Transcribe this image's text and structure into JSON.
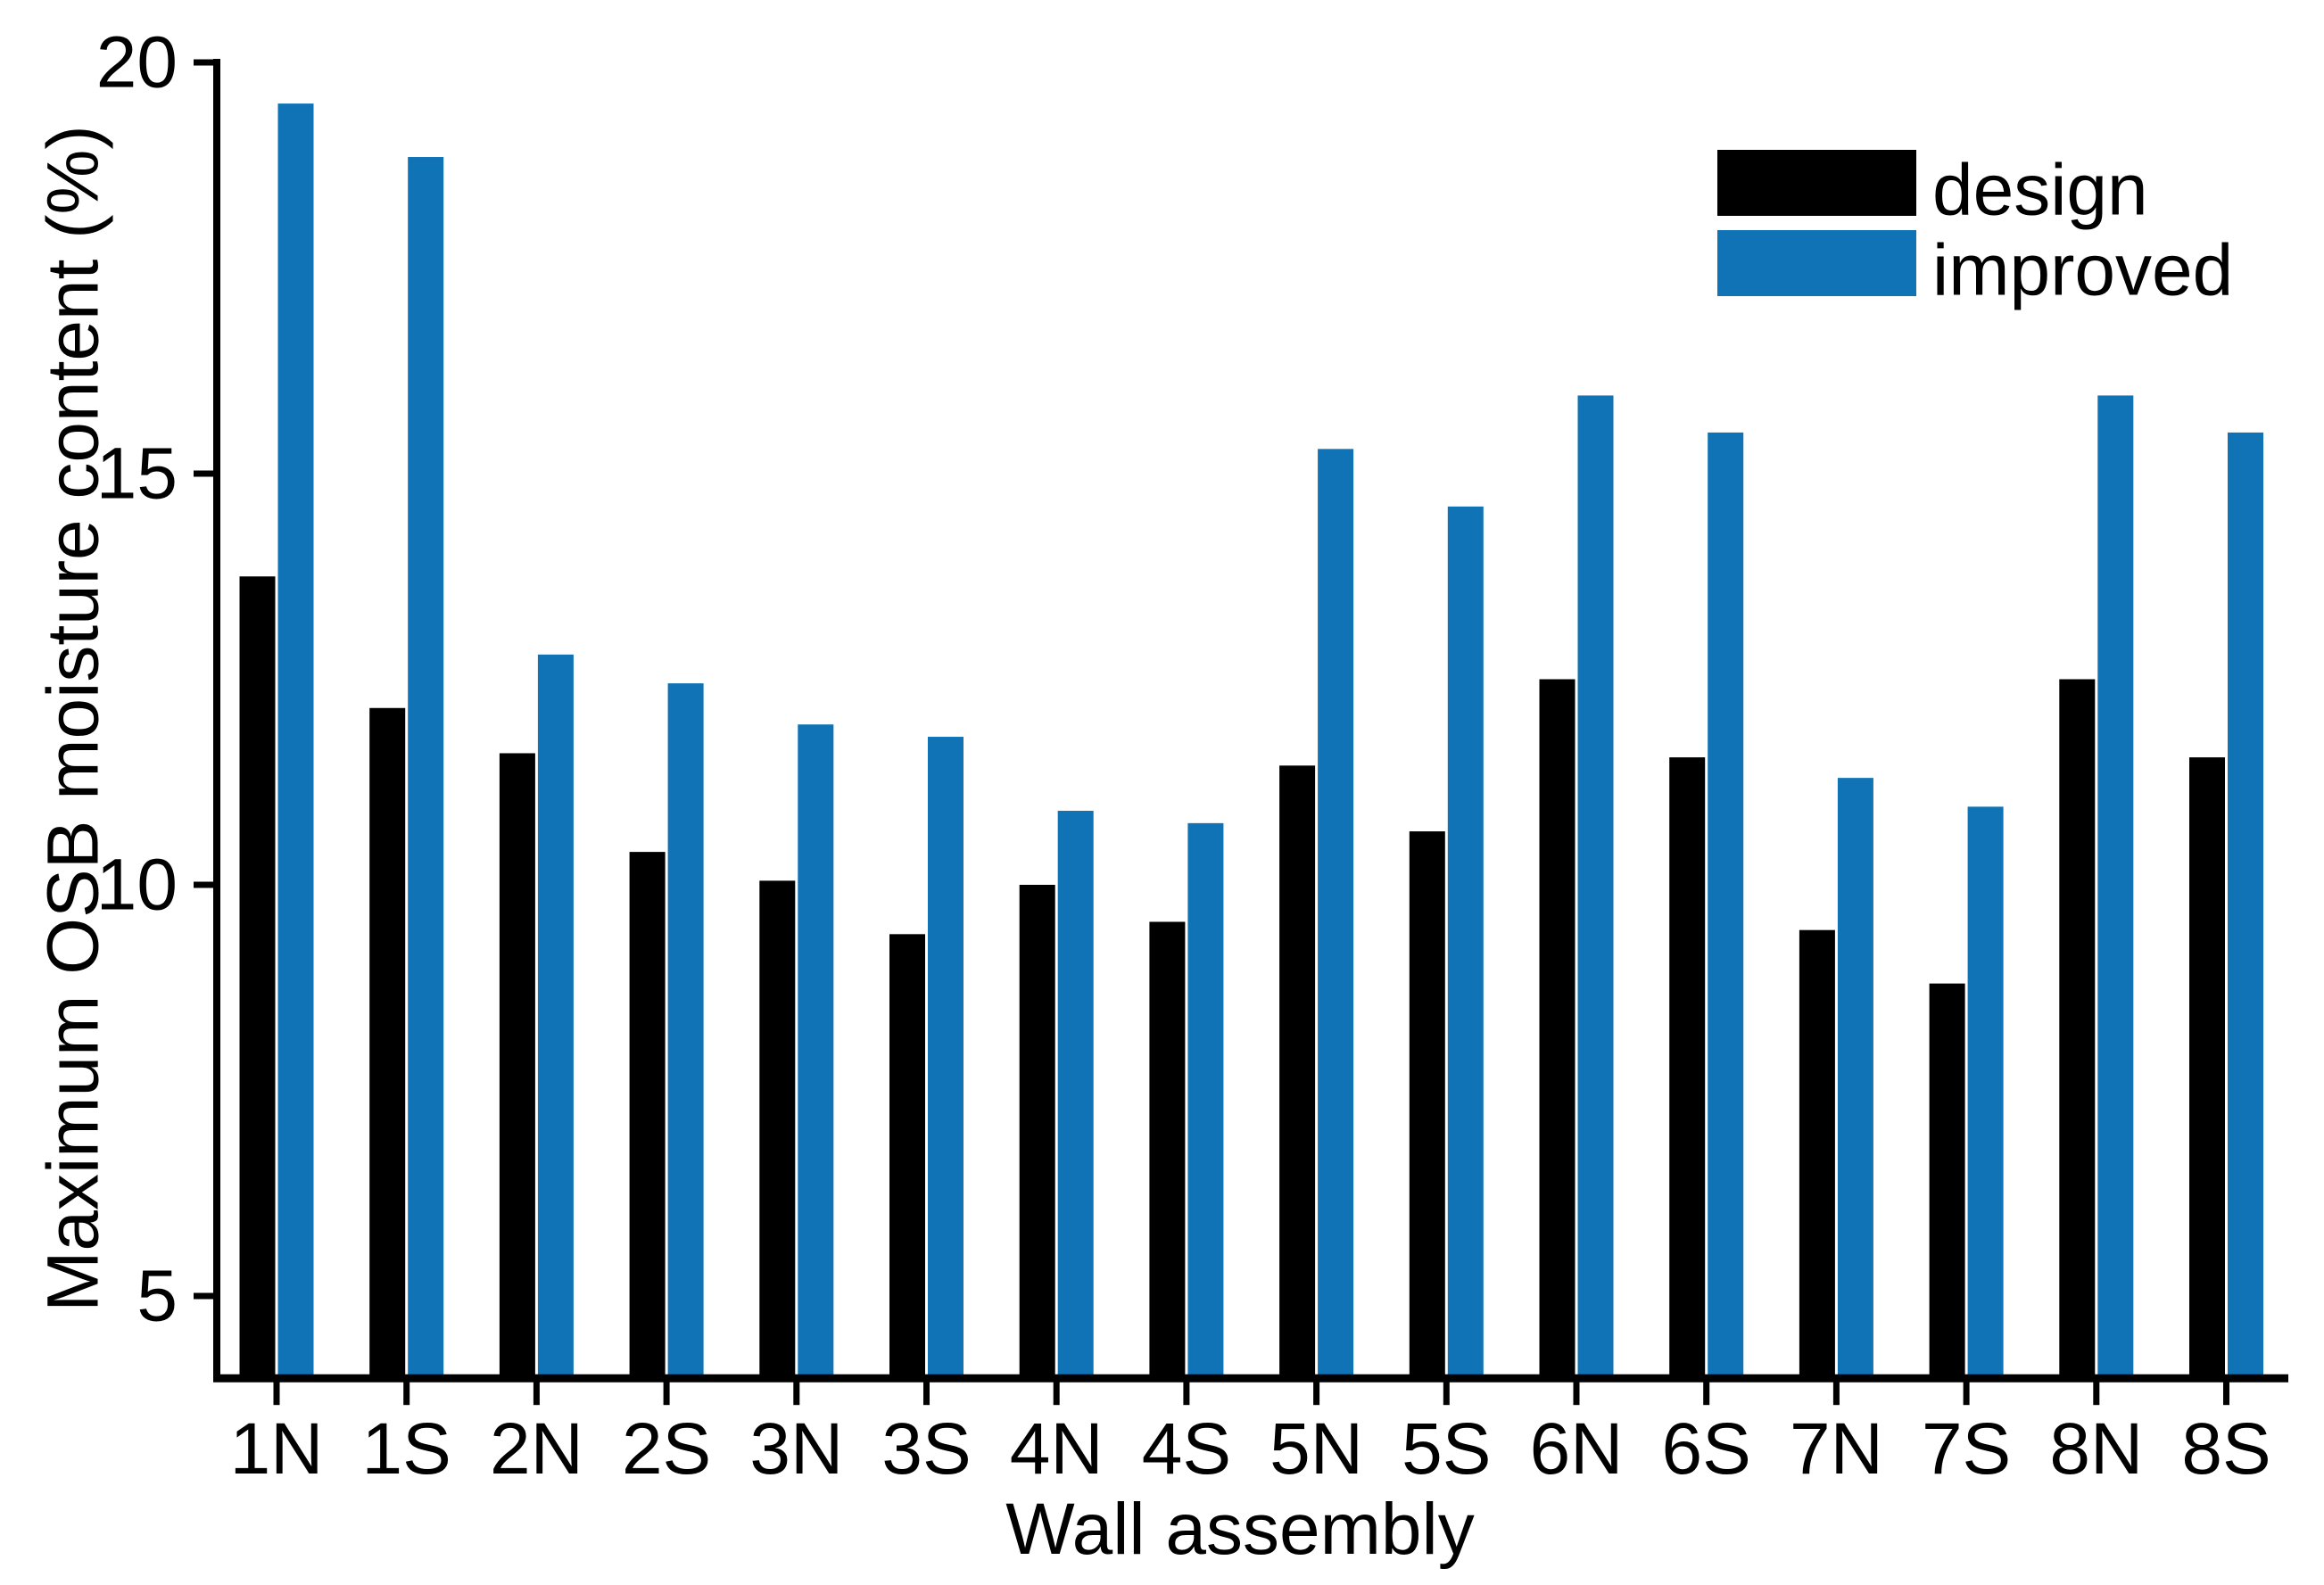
{
  "figure": {
    "background": "#ffffff",
    "axis_color": "#000000"
  },
  "chart_data": {
    "type": "bar",
    "title": "",
    "xlabel": "Wall assembly",
    "ylabel": "Maximum OSB moisture content (%)",
    "categories": [
      "1N",
      "1S",
      "2N",
      "2S",
      "3N",
      "3S",
      "4N",
      "4S",
      "5N",
      "5S",
      "6N",
      "6S",
      "7N",
      "7S",
      "8N",
      "8S"
    ],
    "series": [
      {
        "name": "design",
        "color": "#000000",
        "values": [
          13.75,
          12.15,
          11.6,
          10.4,
          10.05,
          9.4,
          10.0,
          9.55,
          11.45,
          10.65,
          12.5,
          11.55,
          9.45,
          8.8,
          12.5,
          11.55
        ]
      },
      {
        "name": "improved",
        "color": "#0f73b5",
        "values": [
          19.5,
          18.85,
          12.8,
          12.45,
          11.95,
          11.8,
          10.9,
          10.75,
          15.3,
          14.6,
          15.95,
          15.5,
          11.3,
          10.95,
          15.95,
          15.5
        ]
      }
    ],
    "ylim": [
      4,
      20
    ],
    "yticks": [
      5,
      10,
      15,
      20
    ],
    "grid": false,
    "legend_position": "upper right"
  }
}
